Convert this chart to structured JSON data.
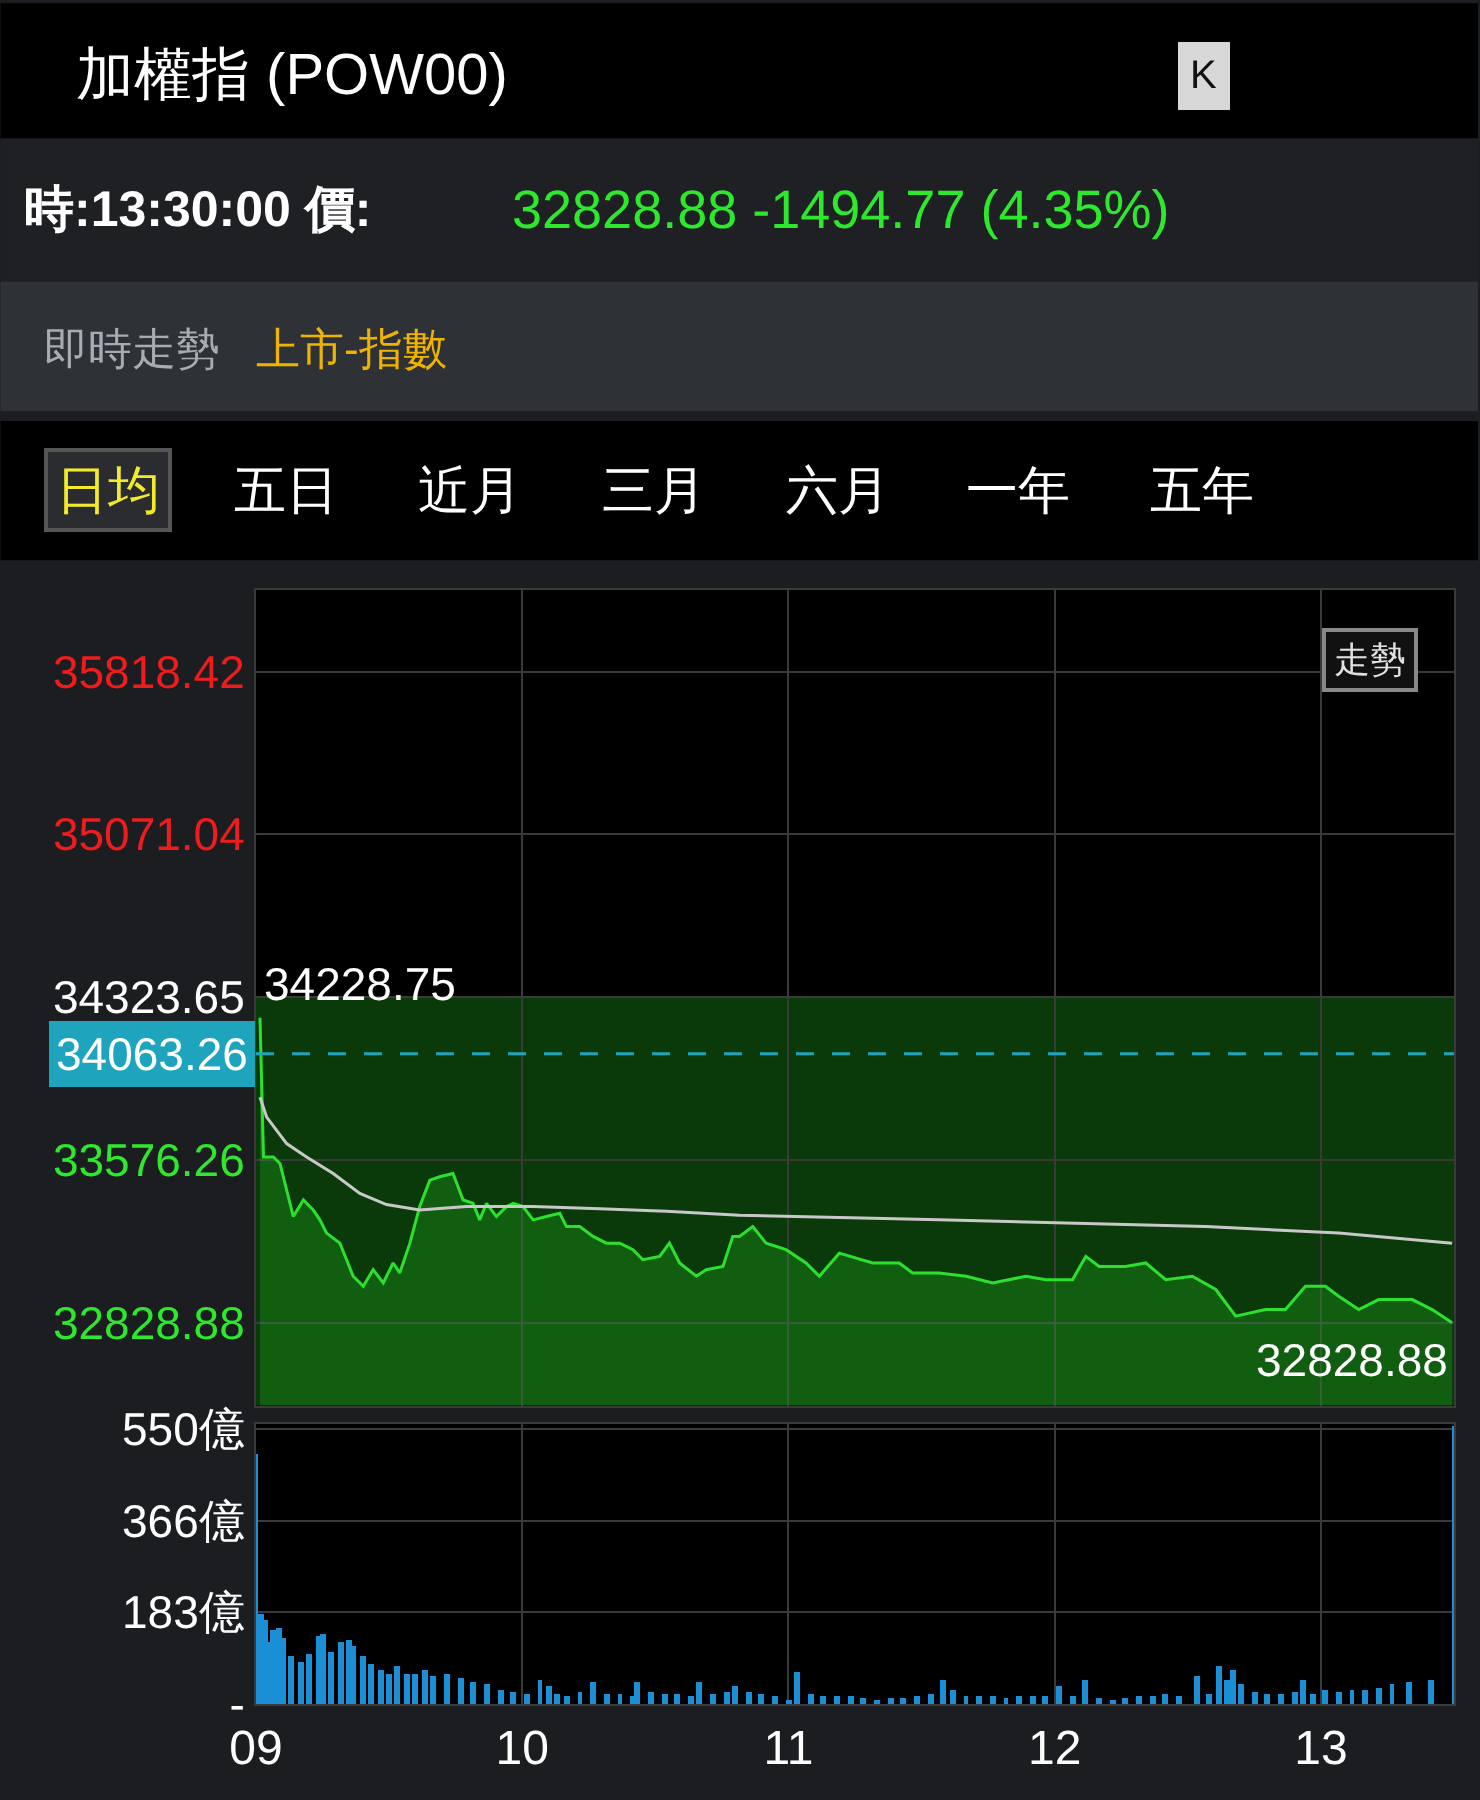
{
  "chart_data": [
    {
      "type": "line",
      "title": "加權指 (POW00)",
      "subtitle": "時:13:30:00 價:",
      "annotations": [
        "32828.88 -1494.77 (4.35%)",
        "即時走勢",
        "上市-指數",
        "日均",
        "五日",
        "近月",
        "三月",
        "六月",
        "一年",
        "五年",
        "K",
        "走勢",
        {
          "text": "34228.75",
          "x": 9.015,
          "y": 34228.75
        },
        {
          "text": "32828.88",
          "x": 13.493,
          "y": 32828.88
        }
      ],
      "xlim": [
        9,
        13.5
      ],
      "xticks": [
        9,
        10,
        11,
        12,
        13
      ],
      "ylim": [
        32448,
        36193
      ],
      "yticks": [
        35818.42,
        35071.04,
        34323.65,
        33576.26,
        32828.88
      ],
      "tick_labels": "y",
      "grid": true,
      "ref_lines": [
        {
          "axis": "y",
          "value": 34063.26,
          "label": "34063.26",
          "color": "#1ea5bd",
          "line_style": "dashed"
        }
      ],
      "bands": [
        {
          "axis": "y",
          "from": 32448,
          "to": 34323.65,
          "color": "#0a3a0a"
        }
      ],
      "series": [
        {
          "type": "area",
          "color": "#2de02d",
          "x": [
            9.015,
            9.028,
            9.065,
            9.09,
            9.14,
            9.178,
            9.215,
            9.24,
            9.265,
            9.315,
            9.365,
            9.403,
            9.44,
            9.478,
            9.515,
            9.54,
            9.578,
            9.615,
            9.653,
            9.69,
            9.74,
            9.778,
            9.815,
            9.84,
            9.866,
            9.903,
            9.941,
            9.966,
            10.003,
            10.041,
            10.091,
            10.141,
            10.166,
            10.216,
            10.266,
            10.316,
            10.366,
            10.416,
            10.453,
            10.516,
            10.553,
            10.591,
            10.654,
            10.691,
            10.754,
            10.791,
            10.816,
            10.866,
            10.916,
            10.991,
            11.066,
            11.116,
            11.191,
            11.316,
            11.416,
            11.466,
            11.566,
            11.667,
            11.767,
            11.892,
            11.967,
            12.067,
            12.117,
            12.167,
            12.267,
            12.342,
            12.417,
            12.517,
            12.605,
            12.68,
            12.792,
            12.867,
            12.942,
            13.017,
            13.067,
            13.142,
            13.217,
            13.343,
            13.418,
            13.493
          ],
          "values": [
            34228.75,
            33590,
            33590,
            33560,
            33316,
            33392,
            33346,
            33301,
            33240,
            33194,
            33042,
            32996,
            33072,
            33011,
            33103,
            33057,
            33194,
            33362,
            33483,
            33499,
            33514,
            33392,
            33377,
            33301,
            33377,
            33316,
            33362,
            33377,
            33362,
            33301,
            33316,
            33331,
            33270,
            33270,
            33225,
            33194,
            33194,
            33164,
            33118,
            33133,
            33194,
            33103,
            33042,
            33072,
            33087,
            33225,
            33225,
            33270,
            33194,
            33164,
            33103,
            33042,
            33148,
            33103,
            33103,
            33057,
            33057,
            33042,
            33011,
            33042,
            33026,
            33026,
            33133,
            33087,
            33087,
            33103,
            33026,
            33042,
            32981,
            32859,
            32889,
            32889,
            32996,
            32996,
            32950,
            32889,
            32935,
            32935,
            32889,
            32828.88
          ]
        },
        {
          "type": "line",
          "color": "#c8c8c8",
          "x": [
            9.015,
            9.04,
            9.115,
            9.19,
            9.29,
            9.39,
            9.49,
            9.615,
            9.79,
            10.041,
            10.291,
            10.541,
            10.816,
            11.566,
            12.567,
            13.067,
            13.493
          ],
          "values": [
            33864,
            33773,
            33651,
            33590,
            33514,
            33422,
            33371,
            33346,
            33362,
            33362,
            33352,
            33340,
            33322,
            33301,
            33270,
            33240,
            33194
          ]
        }
      ]
    },
    {
      "type": "bar",
      "color": "#1a8fd6",
      "xlim": [
        9,
        13.5
      ],
      "xticks": [
        {
          "value": 9,
          "label": "09"
        },
        10,
        11,
        12,
        13
      ],
      "ylim": [
        0,
        560
      ],
      "yticks": [
        {
          "value": 550,
          "label": "550億"
        },
        {
          "value": 366,
          "label": "366億"
        },
        {
          "value": 183,
          "label": "183億"
        },
        {
          "value": 0,
          "label": "-"
        }
      ],
      "grid": true,
      "x": [
        9,
        9.017,
        9.033,
        9.05,
        9.067,
        9.083,
        9.1,
        9.133,
        9.167,
        9.2,
        9.233,
        9.25,
        9.283,
        9.317,
        9.35,
        9.367,
        9.4,
        9.433,
        9.467,
        9.5,
        9.533,
        9.567,
        9.6,
        9.633,
        9.667,
        9.717,
        9.767,
        9.817,
        9.867,
        9.917,
        9.967,
        10.017,
        10.067,
        10.1,
        10.133,
        10.167,
        10.217,
        10.267,
        10.317,
        10.367,
        10.417,
        10.433,
        10.483,
        10.533,
        10.583,
        10.633,
        10.667,
        10.717,
        10.767,
        10.8,
        10.85,
        10.9,
        10.95,
        11,
        11.033,
        11.083,
        11.133,
        11.183,
        11.233,
        11.283,
        11.333,
        11.383,
        11.433,
        11.483,
        11.533,
        11.583,
        11.617,
        11.667,
        11.717,
        11.767,
        11.817,
        11.867,
        11.917,
        11.967,
        12.017,
        12.067,
        12.117,
        12.167,
        12.217,
        12.267,
        12.317,
        12.367,
        12.417,
        12.467,
        12.533,
        12.583,
        12.617,
        12.65,
        12.667,
        12.7,
        12.75,
        12.8,
        12.85,
        12.9,
        12.933,
        12.967,
        13.017,
        13.067,
        13.117,
        13.167,
        13.217,
        13.267,
        13.333,
        13.417,
        13.5
      ],
      "values": [
        502,
        180,
        170,
        123,
        150,
        152,
        133,
        95,
        85,
        100,
        135,
        140,
        105,
        125,
        130,
        115,
        95,
        80,
        68,
        60,
        75,
        62,
        60,
        70,
        55,
        62,
        52,
        45,
        40,
        30,
        25,
        22,
        50,
        35,
        20,
        18,
        25,
        45,
        22,
        20,
        18,
        45,
        25,
        20,
        22,
        18,
        45,
        20,
        25,
        35,
        25,
        20,
        15,
        10,
        65,
        20,
        15,
        18,
        15,
        12,
        10,
        12,
        14,
        15,
        20,
        50,
        30,
        18,
        15,
        15,
        14,
        15,
        15,
        18,
        35,
        18,
        50,
        12,
        10,
        12,
        15,
        18,
        22,
        18,
        55,
        20,
        78,
        50,
        70,
        40,
        25,
        22,
        20,
        25,
        50,
        22,
        30,
        25,
        28,
        30,
        32,
        40,
        45,
        47,
        555
      ]
    }
  ]
}
